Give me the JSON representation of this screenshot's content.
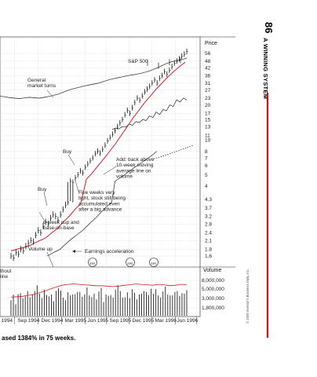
{
  "page": {
    "page_number": "86",
    "running_head": "A WINNING SYSTEM",
    "copyright": "© 2009 Investor's Business Daily, Inc.",
    "caption": "ased 1384% in 75 weeks."
  },
  "colors": {
    "price": "#111111",
    "moving_avg": "#d0202a",
    "accent_rule": "#c0202a",
    "grid": "#b5b5b5"
  },
  "chart_data": {
    "type": "line",
    "title": "",
    "price_scale_label": "Price",
    "volume_scale_label": "Volume",
    "price_ticks": [
      "56",
      "48",
      "42",
      "36",
      "31",
      "27",
      "23",
      "20",
      "17",
      "15",
      "13",
      "11",
      "10",
      "8",
      "7",
      "6",
      "5",
      "4",
      "4.3",
      "3.7",
      "3.2",
      "2.8",
      "2.4",
      "2.1",
      "1.8",
      "1.6"
    ],
    "volume_ticks": [
      "8,000,000",
      "5,000,000",
      "3,000,000",
      "1,800,000"
    ],
    "x_ticks": [
      "1994",
      "Sep 1994",
      "Dec 1994",
      "Mar 1995",
      "Jun 1995",
      "Sep 1995",
      "Dec 1995",
      "Mar 1996",
      "Jun 1996"
    ],
    "series_labels": [
      "S&P 500"
    ],
    "annotations": [
      "General\nmarket turns",
      "Buy",
      "Buy",
      "Add: back above\n10-week moving\naverage line on\nvolume",
      "Five weeks very\ntight, stock still being\naccumulated even\nafter a big advance",
      "6-week cup and\nbase-on-base",
      "Volume up",
      "Earnings acceleration",
      "thout\nline"
    ],
    "price_weekly": [
      1.6,
      1.55,
      1.7,
      1.65,
      1.8,
      1.75,
      1.9,
      2.0,
      2.1,
      2.05,
      2.3,
      2.5,
      2.4,
      2.7,
      2.9,
      2.8,
      3.1,
      3.3,
      3.2,
      3.0,
      3.3,
      3.6,
      3.9,
      4.1,
      4.4,
      4.3,
      4.7,
      5.0,
      5.4,
      5.2,
      5.8,
      6.2,
      6.6,
      7.0,
      7.6,
      8.0,
      7.7,
      8.3,
      9.0,
      9.8,
      10.5,
      11.2,
      12.0,
      13.0,
      14.0,
      15.0,
      16.5,
      18.0,
      17.0,
      19.0,
      21.0,
      23.0,
      22.0,
      24.0,
      26.0,
      27.5,
      29.0,
      31.0,
      33.0,
      31.0,
      34.0,
      36.0,
      39.0,
      37.0,
      40.0,
      43.0,
      46.0,
      48.0,
      50.0,
      53.0,
      55.0,
      58.0
    ],
    "moving_avg": [
      1.75,
      1.8,
      1.85,
      1.9,
      2.0,
      2.1,
      2.2,
      2.4,
      2.6,
      2.9,
      3.2,
      3.6,
      4.0,
      4.6,
      5.2,
      6.0,
      6.9,
      8.0,
      9.3,
      11.0,
      13.0,
      15.5,
      18.0,
      21.0,
      24.0,
      27.5,
      31.0,
      35.0,
      39.0,
      43.0,
      47.0
    ],
    "sp500_relative": [
      24.0,
      23.6,
      23.2,
      23.0,
      22.8,
      23.1,
      23.4,
      23.2,
      23.0,
      23.4,
      23.8,
      24.4,
      25.0,
      26.0,
      27.0,
      27.8,
      28.5,
      29.2,
      29.8,
      30.4,
      31.0,
      32.0,
      33.0,
      33.8,
      34.5,
      35.2,
      36.0,
      36.5,
      37.2,
      38.0,
      39.0,
      40.5,
      42.0,
      44.0,
      46.0,
      47.5,
      48.5,
      49.5,
      51.0
    ],
    "sp500_markers": [
      46.5,
      44.0,
      47.0,
      49.0
    ],
    "relative_strength": [
      1.6,
      1.65,
      1.7,
      1.75,
      1.8,
      1.9,
      2.0,
      2.1,
      2.2,
      2.3,
      2.4,
      2.5,
      2.65,
      2.8,
      2.95,
      3.1,
      3.3,
      3.5,
      3.7,
      3.9,
      4.1,
      4.4,
      4.6,
      4.8,
      5.0,
      5.3,
      5.5,
      5.8,
      6.0,
      6.3,
      6.6,
      6.9,
      7.2,
      7.6,
      8.0
    ],
    "earnings_line": [
      5.0,
      5.6,
      5.3,
      6.2,
      6.0,
      7.2,
      6.7,
      8.2,
      7.8,
      9.0,
      8.6,
      10.4,
      9.8,
      12.0,
      11.0,
      13.0,
      12.5,
      14.8,
      14.2,
      16.8,
      16.0,
      17.5,
      16.8
    ],
    "volume_weekly": [
      3.5,
      4.8,
      2.6,
      4.9,
      5.1,
      3.9,
      4.4,
      5.6,
      4.2,
      4.9,
      5.6,
      6.9,
      5.0,
      4.0,
      5.9,
      4.7,
      4.4,
      4.8,
      3.3,
      5.6,
      6.2,
      5.7,
      4.1,
      3.5,
      5.3,
      4.6,
      4.8,
      4.9,
      5.4,
      5.4,
      4.3,
      4.8,
      6.4,
      4.6,
      4.2,
      5.0,
      3.7,
      5.5,
      6.3,
      3.1,
      4.8,
      4.5,
      4.7,
      4.1,
      5.9,
      6.9,
      5.6,
      4.1,
      4.2,
      5.3,
      4.0,
      6.0,
      5.2,
      3.7,
      4.8,
      5.0,
      5.6,
      5.4,
      4.7,
      6.1,
      5.0,
      6.0,
      4.6,
      4.1,
      5.5,
      6.6,
      4.8,
      4.6,
      4.6,
      5.4,
      5.6,
      4.5,
      5.1,
      5.0,
      5.8
    ],
    "volume_avg": [
      4.2,
      4.3,
      4.4,
      4.6,
      4.8,
      5.2,
      5.6,
      6.1,
      6.5,
      6.9,
      7.1,
      7.2,
      7.1,
      7.0,
      6.9,
      6.8,
      6.8,
      6.7,
      6.6,
      6.7,
      6.9,
      7.0,
      7.2,
      7.1,
      7.0,
      6.9,
      7.1,
      7.0,
      6.8,
      6.9,
      7.1,
      7.0
    ],
    "earnings_markers": [
      "q1",
      "q2",
      "q3"
    ]
  }
}
